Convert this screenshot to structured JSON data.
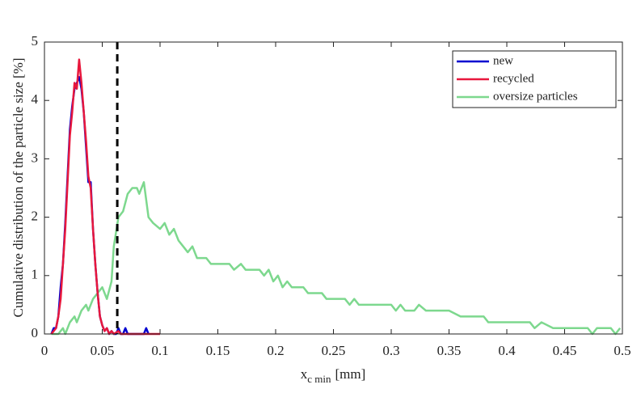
{
  "chart_data": {
    "type": "line",
    "ylabel": "Cumulative distribution of the particle size [%]",
    "xlabel": "x",
    "xlabel_subscript": "c min",
    "xlabel_unit": "[mm]",
    "xlim": [
      0,
      0.5
    ],
    "ylim": [
      0,
      5
    ],
    "xticks": [
      0,
      0.05,
      0.1,
      0.15,
      0.2,
      0.25,
      0.3,
      0.35,
      0.4,
      0.45,
      0.5
    ],
    "yticks": [
      0,
      1,
      2,
      3,
      4,
      5
    ],
    "legend": "upper right",
    "reference_line": {
      "x": 0.063,
      "color": "#000000",
      "dashed": true
    },
    "series": [
      {
        "name": "new",
        "color": "#0000d0",
        "x": [
          0.006,
          0.008,
          0.01,
          0.012,
          0.014,
          0.016,
          0.018,
          0.02,
          0.022,
          0.024,
          0.026,
          0.028,
          0.03,
          0.032,
          0.034,
          0.036,
          0.038,
          0.04,
          0.042,
          0.044,
          0.046,
          0.048,
          0.05,
          0.052,
          0.054,
          0.056,
          0.058,
          0.06,
          0.062,
          0.064,
          0.066,
          0.068,
          0.07,
          0.072,
          0.074,
          0.076,
          0.078,
          0.086,
          0.088,
          0.09
        ],
        "values": [
          0,
          0.1,
          0.1,
          0.3,
          0.8,
          1.2,
          1.9,
          2.7,
          3.5,
          3.9,
          4.2,
          4.3,
          4.4,
          4.2,
          3.8,
          3.2,
          2.6,
          2.6,
          1.8,
          1.2,
          0.7,
          0.3,
          0.15,
          0.05,
          0.1,
          0,
          0.05,
          0,
          0,
          0.1,
          0,
          0,
          0.1,
          0,
          0,
          0,
          0,
          0,
          0.1,
          0
        ]
      },
      {
        "name": "recycled",
        "color": "#e8173c",
        "x": [
          0.006,
          0.008,
          0.01,
          0.012,
          0.014,
          0.016,
          0.018,
          0.02,
          0.022,
          0.024,
          0.026,
          0.028,
          0.03,
          0.032,
          0.034,
          0.036,
          0.038,
          0.04,
          0.042,
          0.044,
          0.046,
          0.048,
          0.05,
          0.052,
          0.054,
          0.056,
          0.058,
          0.06,
          0.064,
          0.066,
          0.1
        ],
        "values": [
          0,
          0.05,
          0.1,
          0.3,
          0.6,
          1.2,
          1.8,
          2.6,
          3.4,
          3.8,
          4.3,
          4.2,
          4.7,
          4.3,
          3.8,
          3.3,
          2.7,
          2.5,
          1.8,
          1.2,
          0.7,
          0.3,
          0.15,
          0.05,
          0.1,
          0,
          0.05,
          0,
          0.05,
          0,
          0
        ]
      },
      {
        "name": "oversize particles",
        "color": "#7dd88e",
        "x": [
          0.006,
          0.012,
          0.016,
          0.018,
          0.022,
          0.026,
          0.028,
          0.032,
          0.036,
          0.038,
          0.042,
          0.046,
          0.05,
          0.054,
          0.058,
          0.06,
          0.064,
          0.068,
          0.072,
          0.076,
          0.08,
          0.082,
          0.086,
          0.09,
          0.094,
          0.1,
          0.104,
          0.108,
          0.112,
          0.116,
          0.12,
          0.124,
          0.128,
          0.132,
          0.14,
          0.144,
          0.16,
          0.164,
          0.17,
          0.174,
          0.186,
          0.19,
          0.194,
          0.198,
          0.202,
          0.206,
          0.21,
          0.214,
          0.224,
          0.228,
          0.24,
          0.244,
          0.26,
          0.264,
          0.268,
          0.272,
          0.3,
          0.304,
          0.308,
          0.312,
          0.32,
          0.324,
          0.33,
          0.334,
          0.35,
          0.36,
          0.38,
          0.384,
          0.42,
          0.424,
          0.43,
          0.44,
          0.45,
          0.47,
          0.474,
          0.478,
          0.49,
          0.494,
          0.498
        ],
        "values": [
          0,
          0,
          0.1,
          0,
          0.2,
          0.3,
          0.2,
          0.4,
          0.5,
          0.4,
          0.6,
          0.7,
          0.8,
          0.6,
          0.9,
          1.5,
          2.0,
          2.1,
          2.4,
          2.5,
          2.5,
          2.4,
          2.6,
          2.0,
          1.9,
          1.8,
          1.9,
          1.7,
          1.8,
          1.6,
          1.5,
          1.4,
          1.5,
          1.3,
          1.3,
          1.2,
          1.2,
          1.1,
          1.2,
          1.1,
          1.1,
          1.0,
          1.1,
          0.9,
          1.0,
          0.8,
          0.9,
          0.8,
          0.8,
          0.7,
          0.7,
          0.6,
          0.6,
          0.5,
          0.6,
          0.5,
          0.5,
          0.4,
          0.5,
          0.4,
          0.4,
          0.5,
          0.4,
          0.4,
          0.4,
          0.3,
          0.3,
          0.2,
          0.2,
          0.1,
          0.2,
          0.1,
          0.1,
          0.1,
          0,
          0.1,
          0.1,
          0,
          0.1
        ]
      }
    ]
  }
}
